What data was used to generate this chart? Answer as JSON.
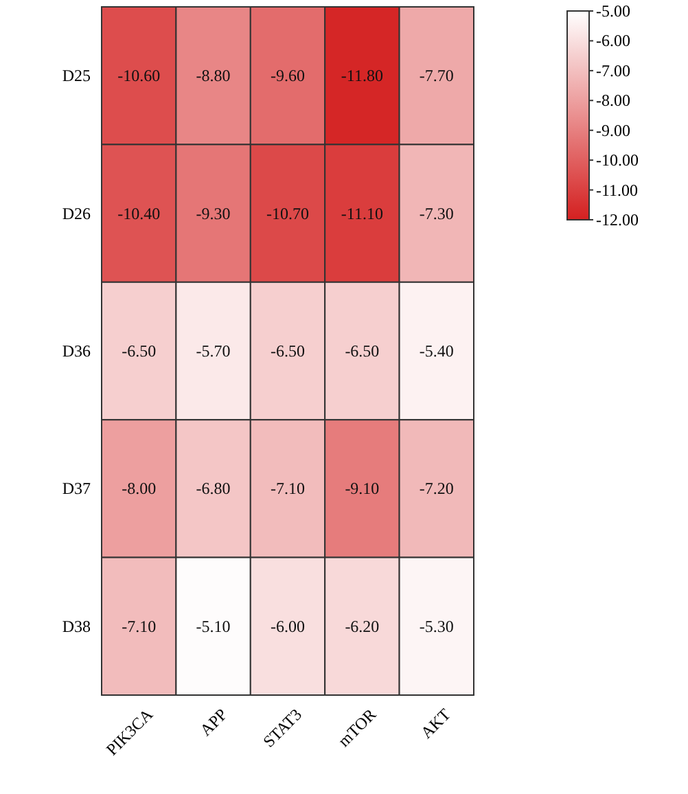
{
  "chart_data": {
    "type": "heatmap",
    "categories": [
      "PIK3CA",
      "APP",
      "STAT3",
      "mTOR",
      "AKT"
    ],
    "y_categories": [
      "D25",
      "D26",
      "D36",
      "D37",
      "D38"
    ],
    "cells": [
      [
        -10.6,
        -8.8,
        -9.6,
        -11.8,
        -7.7
      ],
      [
        -10.4,
        -9.3,
        -10.7,
        -11.1,
        -7.3
      ],
      [
        -6.5,
        -5.7,
        -6.5,
        -6.5,
        -5.4
      ],
      [
        -8.0,
        -6.8,
        -7.1,
        -9.1,
        -7.2
      ],
      [
        -7.1,
        -5.1,
        -6.0,
        -6.2,
        -5.3
      ]
    ],
    "cell_labels": [
      [
        "-10.60",
        "-8.80",
        "-9.60",
        "-11.80",
        "-7.70"
      ],
      [
        "-10.40",
        "-9.30",
        "-10.70",
        "-11.10",
        "-7.30"
      ],
      [
        "-6.50",
        "-5.70",
        "-6.50",
        "-6.50",
        "-5.40"
      ],
      [
        "-8.00",
        "-6.80",
        "-7.10",
        "-9.10",
        "-7.20"
      ],
      [
        "-7.10",
        "-5.10",
        "-6.00",
        "-6.20",
        "-5.30"
      ]
    ],
    "clim": [
      -12,
      -5
    ],
    "cticks": [
      {
        "value": -5,
        "label": "-5.00"
      },
      {
        "value": -6,
        "label": "-6.00"
      },
      {
        "value": -7,
        "label": "-7.00"
      },
      {
        "value": -8,
        "label": "-8.00"
      },
      {
        "value": -9,
        "label": "-9.00"
      },
      {
        "value": -10,
        "label": "-10.00"
      },
      {
        "value": -11,
        "label": "-11.00"
      },
      {
        "value": -12,
        "label": "-12.00"
      }
    ],
    "colors": [
      "#d42020",
      "#ffffff"
    ]
  }
}
